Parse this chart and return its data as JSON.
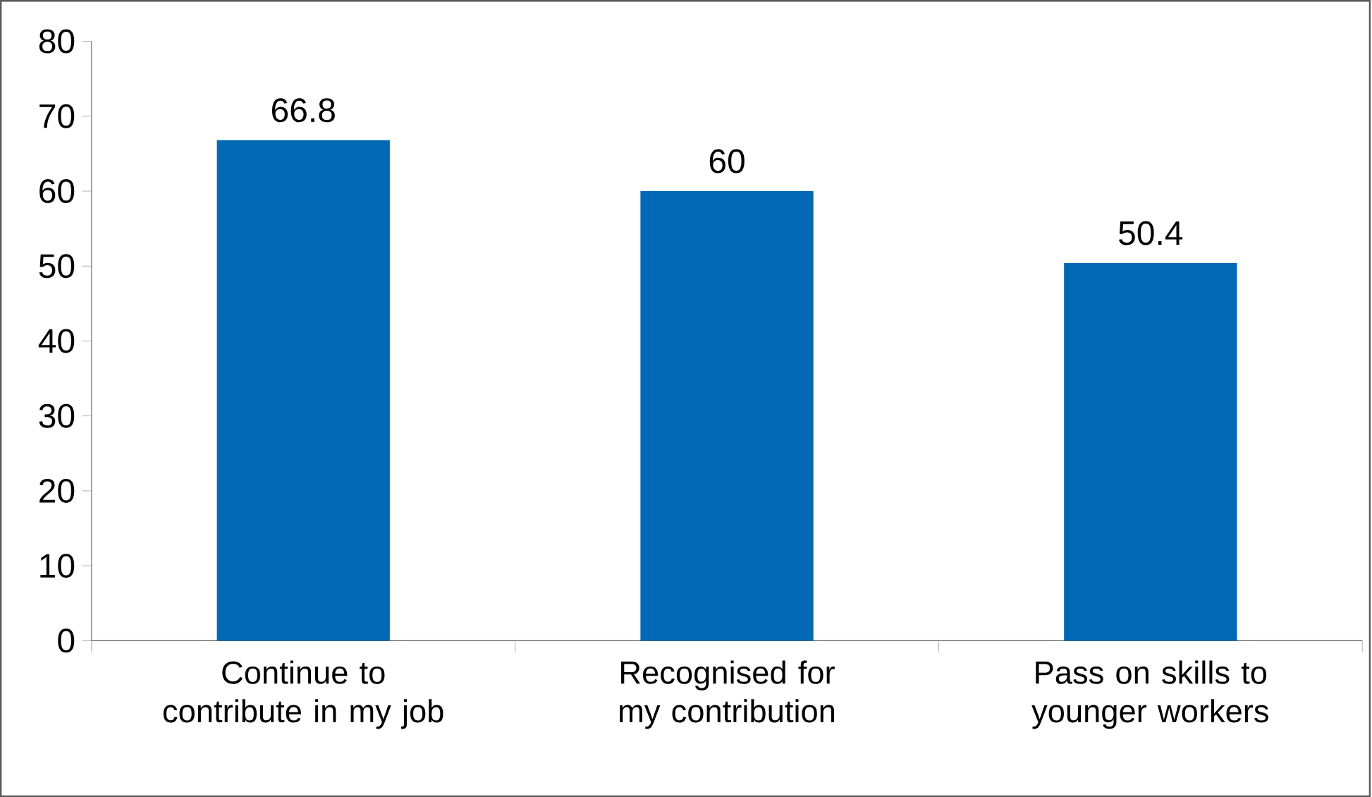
{
  "chart_data": {
    "type": "bar",
    "categories": [
      "Continue to contribute in my job",
      "Recognised for my contribution",
      "Pass on skills to younger workers"
    ],
    "values": [
      66.8,
      60,
      50.4
    ],
    "color": "#0068b5",
    "ylim": [
      0,
      80
    ],
    "yticks": [
      0,
      10,
      20,
      30,
      40,
      50,
      60,
      70,
      80
    ],
    "data_labels": true,
    "grid": false
  }
}
